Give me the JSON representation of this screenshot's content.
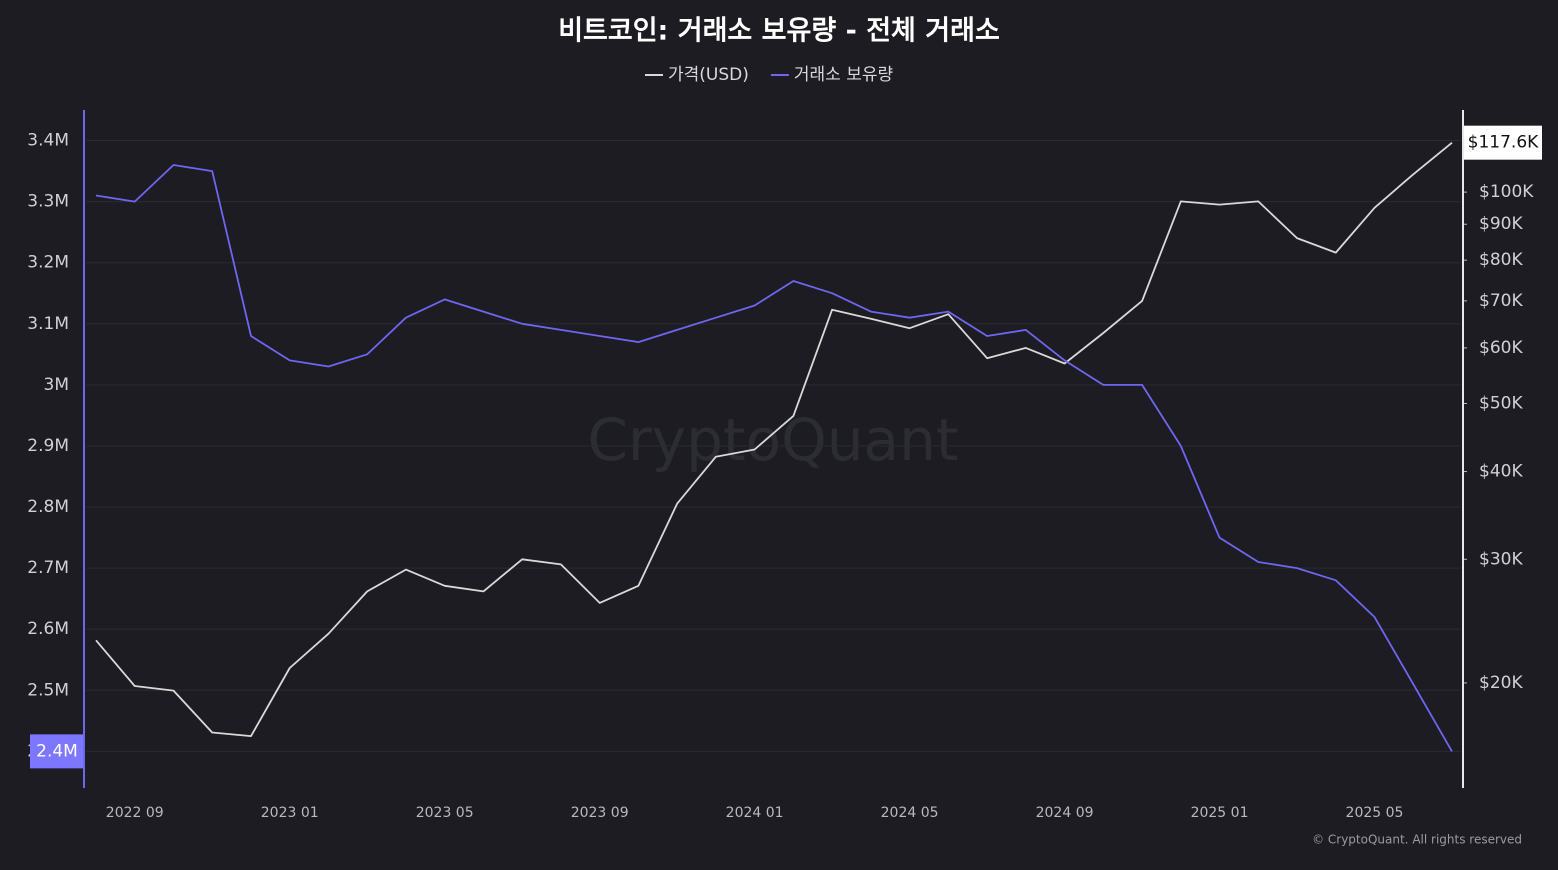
{
  "chart_data": {
    "type": "line",
    "title": "비트코인: 거래소 보유량 - 전체 거래소",
    "watermark": "CryptoQuant",
    "copyright": "© CryptoQuant. All rights reserved",
    "x": [
      "2022-08",
      "2022-09",
      "2022-10",
      "2022-11",
      "2022-12",
      "2023-01",
      "2023-02",
      "2023-03",
      "2023-04",
      "2023-05",
      "2023-06",
      "2023-07",
      "2023-08",
      "2023-09",
      "2023-10",
      "2023-11",
      "2023-12",
      "2024-01",
      "2024-02",
      "2024-03",
      "2024-04",
      "2024-05",
      "2024-06",
      "2024-07",
      "2024-08",
      "2024-09",
      "2024-10",
      "2024-11",
      "2024-12",
      "2025-01",
      "2025-02",
      "2025-03",
      "2025-04",
      "2025-05",
      "2025-06",
      "2025-07"
    ],
    "xlim": [
      "2022-08",
      "2025-07"
    ],
    "xticks": [
      {
        "value": "2022-09",
        "label": "2022 09"
      },
      {
        "value": "2023-01",
        "label": "2023 01"
      },
      {
        "value": "2023-05",
        "label": "2023 05"
      },
      {
        "value": "2023-09",
        "label": "2023 09"
      },
      {
        "value": "2024-01",
        "label": "2024 01"
      },
      {
        "value": "2024-05",
        "label": "2024 05"
      },
      {
        "value": "2024-09",
        "label": "2024 09"
      },
      {
        "value": "2025-01",
        "label": "2025 01"
      },
      {
        "value": "2025-05",
        "label": "2025 05"
      }
    ],
    "ylim": [
      2340000,
      3450000
    ],
    "yticks": [
      {
        "value": 2400000,
        "label": "2.4M"
      },
      {
        "value": 2500000,
        "label": "2.5M"
      },
      {
        "value": 2600000,
        "label": "2.6M"
      },
      {
        "value": 2700000,
        "label": "2.7M"
      },
      {
        "value": 2800000,
        "label": "2.8M"
      },
      {
        "value": 2900000,
        "label": "2.9M"
      },
      {
        "value": 3000000,
        "label": "3M"
      },
      {
        "value": 3100000,
        "label": "3.1M"
      },
      {
        "value": 3200000,
        "label": "3.2M"
      },
      {
        "value": 3300000,
        "label": "3.3M"
      },
      {
        "value": 3400000,
        "label": "3.4M"
      }
    ],
    "y2lim": [
      14170,
      130900
    ],
    "y2scale": "log",
    "y2ticks": [
      {
        "value": 20000,
        "label": "$20K"
      },
      {
        "value": 30000,
        "label": "$30K"
      },
      {
        "value": 40000,
        "label": "$40K"
      },
      {
        "value": 50000,
        "label": "$50K"
      },
      {
        "value": 60000,
        "label": "$60K"
      },
      {
        "value": 70000,
        "label": "$70K"
      },
      {
        "value": 80000,
        "label": "$80K"
      },
      {
        "value": 90000,
        "label": "$90K"
      },
      {
        "value": 100000,
        "label": "$100K"
      }
    ],
    "grid": true,
    "legend": "top",
    "series": [
      {
        "name": "가격(USD)",
        "color": "#d9d9d9",
        "axis": "y2",
        "current_label": "$117.6K",
        "values": [
          23000,
          19800,
          19500,
          17000,
          16800,
          21000,
          23500,
          27000,
          29000,
          27500,
          27000,
          30000,
          29500,
          26000,
          27500,
          36000,
          42000,
          43000,
          48000,
          68000,
          66000,
          64000,
          67000,
          58000,
          60000,
          57000,
          63000,
          70000,
          97000,
          96000,
          97000,
          86000,
          82000,
          95000,
          106000,
          117600
        ]
      },
      {
        "name": "거래소 보유량",
        "color": "#6e66f0",
        "axis": "y",
        "current_label": "2.4M",
        "values": [
          3310000,
          3300000,
          3360000,
          3350000,
          3080000,
          3040000,
          3030000,
          3050000,
          3110000,
          3140000,
          3120000,
          3100000,
          3090000,
          3080000,
          3070000,
          3090000,
          3110000,
          3130000,
          3170000,
          3150000,
          3120000,
          3110000,
          3120000,
          3080000,
          3090000,
          3040000,
          3000000,
          3000000,
          2900000,
          2750000,
          2710000,
          2700000,
          2680000,
          2620000,
          2510000,
          2400000
        ]
      }
    ]
  }
}
